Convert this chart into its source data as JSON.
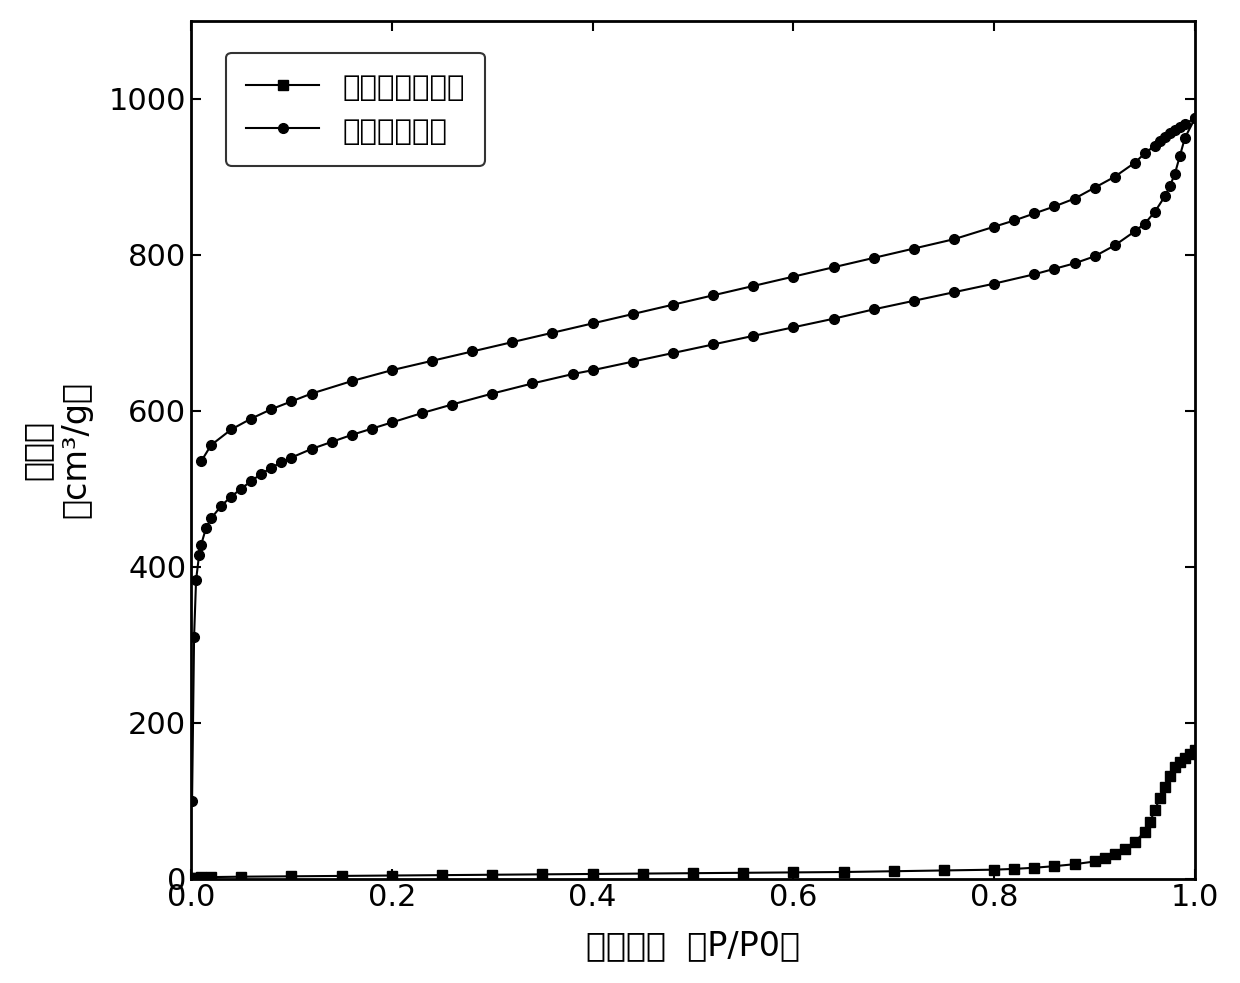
{
  "title": "",
  "xlabel": "相对压力  （P/P0）",
  "ylabel": "吸附量  （cm³/g）",
  "ylabel_line1": "吸附量",
  "ylabel_line2": "（cm³/g）",
  "xlim": [
    0,
    1.0
  ],
  "ylim": [
    0,
    1100
  ],
  "yticks": [
    0,
    200,
    400,
    600,
    800,
    1000
  ],
  "xticks": [
    0.0,
    0.2,
    0.4,
    0.6,
    0.8,
    1.0
  ],
  "line_color": "#000000",
  "background_color": "#ffffff",
  "series1_label": "溶剂热碳化产物",
  "series2_label": "多级孔碳材料",
  "series1_x": [
    0.001,
    0.005,
    0.01,
    0.02,
    0.05,
    0.1,
    0.15,
    0.2,
    0.25,
    0.3,
    0.35,
    0.4,
    0.45,
    0.5,
    0.55,
    0.6,
    0.65,
    0.7,
    0.75,
    0.8,
    0.82,
    0.84,
    0.86,
    0.88,
    0.9,
    0.91,
    0.92,
    0.93,
    0.94,
    0.95,
    0.955,
    0.96,
    0.965,
    0.97,
    0.975,
    0.98,
    0.985,
    0.99,
    0.995,
    1.0
  ],
  "series1_y": [
    0.5,
    1.0,
    1.5,
    2.0,
    2.5,
    3.0,
    3.5,
    4.0,
    4.5,
    5.0,
    5.5,
    6.0,
    6.5,
    7.0,
    7.5,
    8.0,
    8.5,
    9.5,
    10.5,
    11.5,
    12.5,
    14.0,
    16.0,
    18.5,
    22.0,
    26.0,
    31.0,
    38.0,
    47.0,
    60.0,
    72.0,
    88.0,
    103.0,
    118.0,
    132.0,
    143.0,
    150.0,
    155.0,
    160.0,
    165.0
  ],
  "series2_adsorption_x": [
    0.001,
    0.003,
    0.005,
    0.008,
    0.01,
    0.015,
    0.02,
    0.03,
    0.04,
    0.05,
    0.06,
    0.07,
    0.08,
    0.09,
    0.1,
    0.12,
    0.14,
    0.16,
    0.18,
    0.2,
    0.23,
    0.26,
    0.3,
    0.34,
    0.38,
    0.4,
    0.44,
    0.48,
    0.52,
    0.56,
    0.6,
    0.64,
    0.68,
    0.72,
    0.76,
    0.8,
    0.84,
    0.86,
    0.88,
    0.9,
    0.92,
    0.94,
    0.95,
    0.96,
    0.97,
    0.975,
    0.98,
    0.985,
    0.99,
    1.0
  ],
  "series2_adsorption_y": [
    100,
    310,
    383,
    415,
    428,
    450,
    462,
    478,
    490,
    500,
    510,
    519,
    527,
    534,
    540,
    551,
    560,
    569,
    577,
    585,
    597,
    608,
    622,
    635,
    647,
    652,
    663,
    674,
    685,
    696,
    707,
    718,
    730,
    741,
    752,
    763,
    775,
    782,
    789,
    798,
    812,
    830,
    840,
    855,
    875,
    888,
    904,
    927,
    950,
    975
  ],
  "series2_desorption_x": [
    1.0,
    0.99,
    0.985,
    0.98,
    0.975,
    0.97,
    0.965,
    0.96,
    0.95,
    0.94,
    0.92,
    0.9,
    0.88,
    0.86,
    0.84,
    0.82,
    0.8,
    0.76,
    0.72,
    0.68,
    0.64,
    0.6,
    0.56,
    0.52,
    0.48,
    0.44,
    0.4,
    0.36,
    0.32,
    0.28,
    0.24,
    0.2,
    0.16,
    0.12,
    0.1,
    0.08,
    0.06,
    0.04,
    0.02,
    0.01
  ],
  "series2_desorption_y": [
    975,
    968,
    964,
    960,
    956,
    951,
    946,
    940,
    930,
    918,
    900,
    886,
    872,
    862,
    853,
    844,
    836,
    820,
    808,
    796,
    784,
    772,
    760,
    748,
    736,
    724,
    712,
    700,
    688,
    676,
    664,
    652,
    638,
    622,
    612,
    602,
    590,
    576,
    556,
    535
  ]
}
